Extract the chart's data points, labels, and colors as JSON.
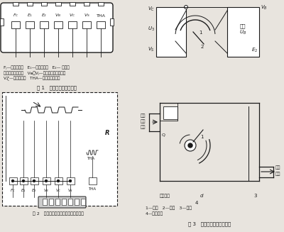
{
  "bg_color": "#e8e4de",
  "line_color": "#1a1a1a",
  "fig1_title": "图 1   空气流量计电线插头",
  "fig2_title": "图 2   空气流量计内部线路与插座的连接",
  "fig3_title": "图 3   空气流量计的工作原理",
  "connector_labels": [
    "F_C",
    "E_1",
    "E_2",
    "V_B",
    "V_C",
    "V_S",
    "THA"
  ],
  "desc1_line1": "Fⱼ—燃油泵开关   E₁—发动机接地   E₂— 空气流",
  "desc1_line2": "量计及传感器接地   Vⱺ、Vⱼ—空气流量电位传感器",
  "desc1_line3": "VⱿ—电位计陡头   THA—空气温度传感器",
  "legend_line1": "1—滑臂   2—电阻   3—羼片",
  "legend_line2": "4—旁通气道"
}
